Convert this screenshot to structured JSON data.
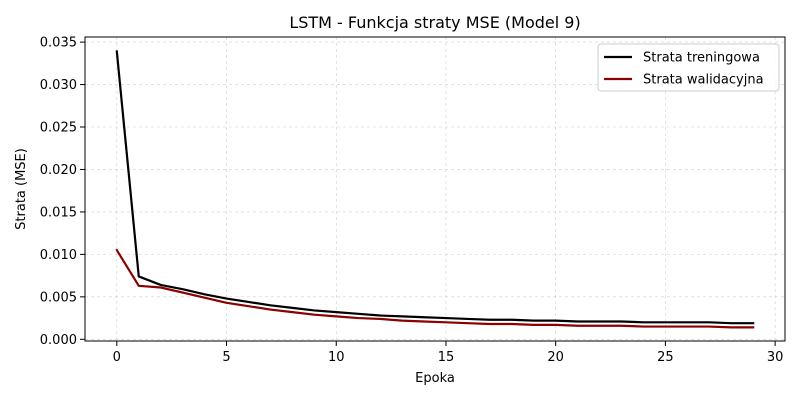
{
  "chart_data": {
    "type": "line",
    "title": "LSTM - Funkcja straty MSE (Model 9)",
    "xlabel": "Epoka",
    "ylabel": "Strata (MSE)",
    "xlim": [
      -1.45,
      30.45
    ],
    "ylim": [
      -0.0002,
      0.0356
    ],
    "xticks": [
      0,
      5,
      10,
      15,
      20,
      25,
      30
    ],
    "xtick_labels": [
      "0",
      "5",
      "10",
      "15",
      "20",
      "25",
      "30"
    ],
    "yticks": [
      0.0,
      0.005,
      0.01,
      0.015,
      0.02,
      0.025,
      0.03,
      0.035
    ],
    "ytick_labels": [
      "0.000",
      "0.005",
      "0.010",
      "0.015",
      "0.020",
      "0.025",
      "0.030",
      "0.035"
    ],
    "grid": true,
    "legend_position": "top-right",
    "x": [
      0,
      1,
      2,
      3,
      4,
      5,
      6,
      7,
      8,
      9,
      10,
      11,
      12,
      13,
      14,
      15,
      16,
      17,
      18,
      19,
      20,
      21,
      22,
      23,
      24,
      25,
      26,
      27,
      28,
      29
    ],
    "series": [
      {
        "name": "Strata treningowa",
        "color": "#000000",
        "values": [
          0.0339,
          0.0074,
          0.0064,
          0.0059,
          0.0053,
          0.0048,
          0.0044,
          0.004,
          0.0037,
          0.0034,
          0.0032,
          0.003,
          0.0028,
          0.0027,
          0.0026,
          0.0025,
          0.0024,
          0.0023,
          0.0023,
          0.0022,
          0.0022,
          0.0021,
          0.0021,
          0.0021,
          0.002,
          0.002,
          0.002,
          0.002,
          0.0019,
          0.0019
        ]
      },
      {
        "name": "Strata walidacyjna",
        "color": "#8b0000",
        "values": [
          0.0105,
          0.0063,
          0.0061,
          0.0055,
          0.0049,
          0.0043,
          0.0039,
          0.0035,
          0.0032,
          0.0029,
          0.0027,
          0.0025,
          0.0024,
          0.0022,
          0.0021,
          0.002,
          0.0019,
          0.0018,
          0.0018,
          0.0017,
          0.0017,
          0.0016,
          0.0016,
          0.0016,
          0.0015,
          0.0015,
          0.0015,
          0.0015,
          0.0014,
          0.0014
        ]
      }
    ]
  }
}
